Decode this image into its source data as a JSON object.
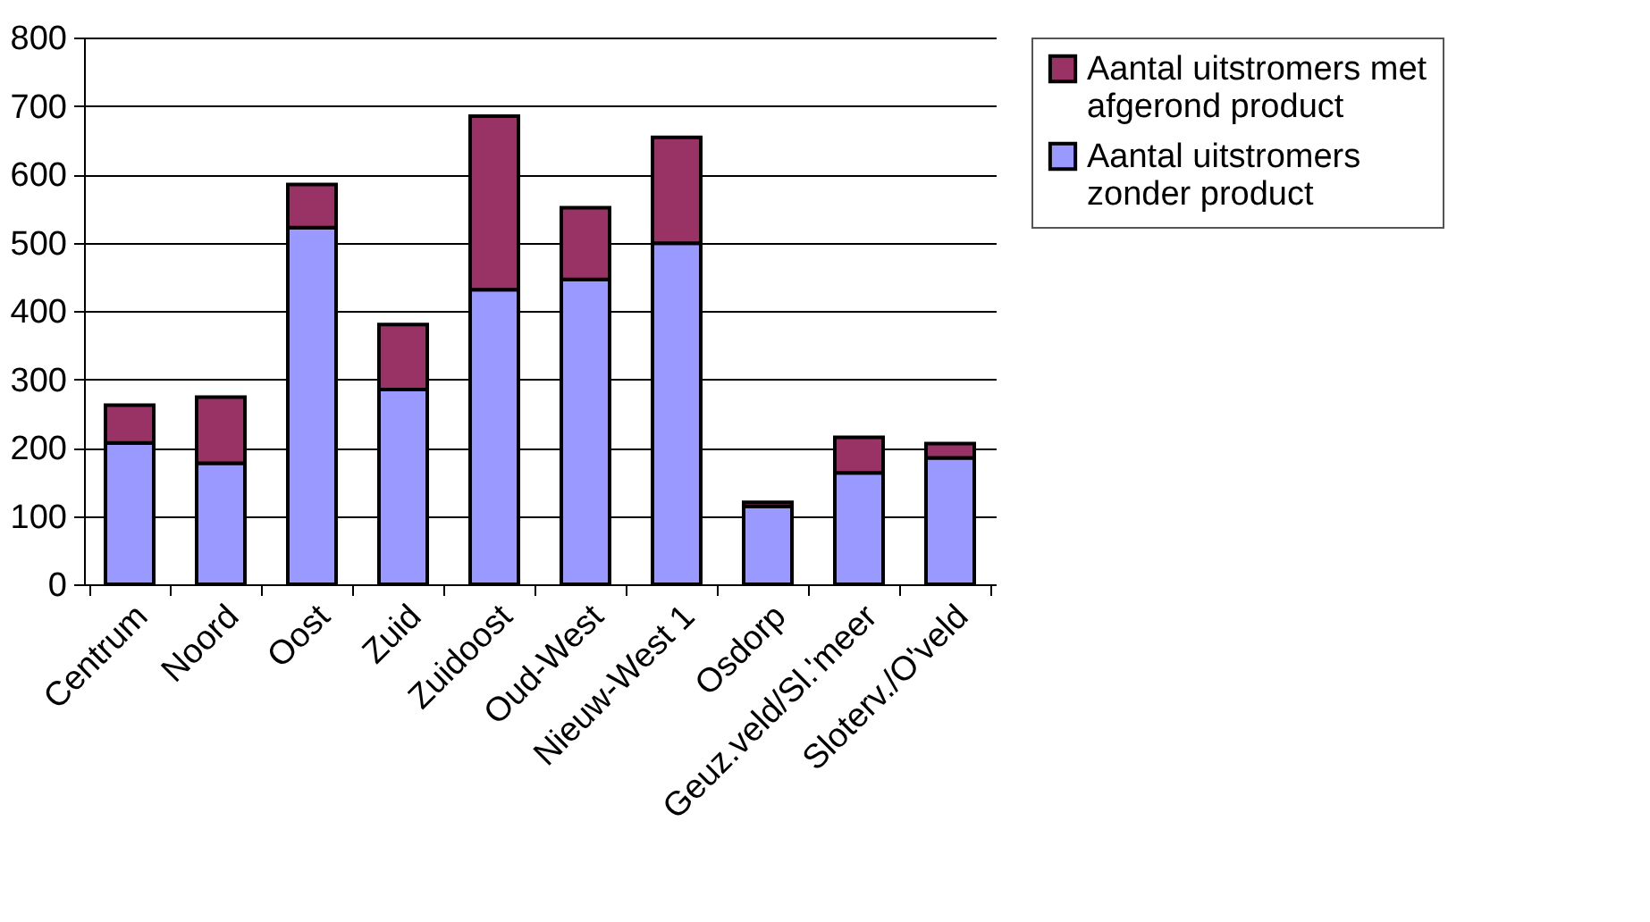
{
  "chart_data": {
    "type": "bar",
    "stacked": true,
    "categories": [
      "Centrum",
      "Noord",
      "Oost",
      "Zuid",
      "Zuidoost",
      "Oud-West",
      "Nieuw-West 1",
      "Osdorp",
      "Geuz.veld/Sl.'meer",
      "Sloterv./O'veld"
    ],
    "series": [
      {
        "name": "Aantal uitstromers zonder product",
        "color": "#9999ff",
        "values": [
          207,
          177,
          522,
          285,
          431,
          446,
          499,
          114,
          163,
          185
        ]
      },
      {
        "name": "Aantal uitstromers met afgerond product",
        "color": "#993366",
        "values": [
          55,
          97,
          63,
          95,
          254,
          105,
          155,
          6,
          52,
          21
        ]
      }
    ],
    "ylim": [
      0,
      800
    ],
    "yticks": [
      0,
      100,
      200,
      300,
      400,
      500,
      600,
      700,
      800
    ],
    "grid": "y",
    "legend": "right"
  }
}
